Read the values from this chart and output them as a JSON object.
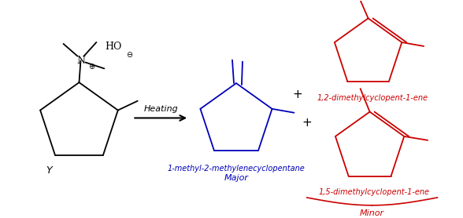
{
  "bg_color": "#ffffff",
  "arrow_color": "#000000",
  "rc": "#000000",
  "mc": "#0000bb",
  "minc": "#cc0000",
  "heating_text": "Heating",
  "major_label1": "1-methyl-2-methylenecyclopentane",
  "major_label2": "Major",
  "minor1_label": "1,2-dimethylcyclopent-1-ene",
  "minor2_label": "1,5-dimethylcyclopent-1-ene",
  "minor_text": "Minor",
  "figsize": [
    5.88,
    2.78
  ],
  "dpi": 100
}
